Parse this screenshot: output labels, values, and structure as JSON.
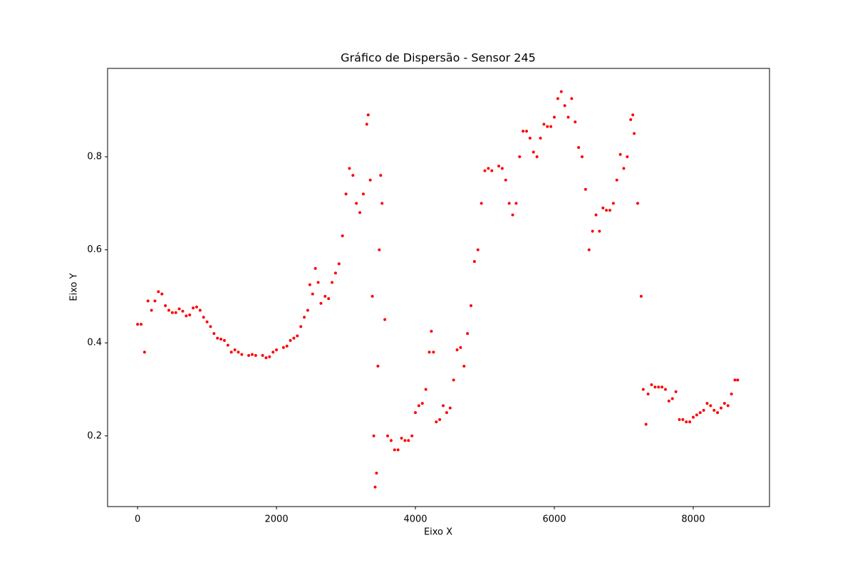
{
  "chart_data": {
    "type": "scatter",
    "title": "Gráfico de Dispersão - Sensor 245",
    "x_label": "Eixo X",
    "y_label": "Eixo Y",
    "color": "#ff0000",
    "x": [
      0,
      50,
      100,
      150,
      200,
      250,
      300,
      350,
      400,
      450,
      500,
      550,
      600,
      650,
      700,
      750,
      800,
      850,
      900,
      950,
      1000,
      1050,
      1100,
      1150,
      1200,
      1250,
      1300,
      1350,
      1400,
      1450,
      1500,
      1600,
      1650,
      1700,
      1800,
      1850,
      1900,
      1950,
      2000,
      2100,
      2150,
      2200,
      2250,
      2300,
      2350,
      2400,
      2450,
      2480,
      2520,
      2560,
      2600,
      2640,
      2700,
      2750,
      2800,
      2850,
      2900,
      2950,
      3000,
      3050,
      3100,
      3150,
      3200,
      3250,
      3300,
      3320,
      3350,
      3380,
      3400,
      3420,
      3440,
      3460,
      3480,
      3500,
      3520,
      3560,
      3600,
      3650,
      3700,
      3750,
      3800,
      3850,
      3900,
      3950,
      4000,
      4050,
      4100,
      4150,
      4200,
      4230,
      4260,
      4300,
      4350,
      4400,
      4450,
      4500,
      4550,
      4600,
      4650,
      4700,
      4750,
      4800,
      4850,
      4900,
      4950,
      5000,
      5050,
      5100,
      5200,
      5250,
      5300,
      5350,
      5400,
      5450,
      5500,
      5550,
      5600,
      5650,
      5700,
      5750,
      5800,
      5850,
      5900,
      5950,
      6000,
      6050,
      6100,
      6150,
      6200,
      6250,
      6300,
      6350,
      6400,
      6450,
      6500,
      6550,
      6600,
      6650,
      6700,
      6750,
      6800,
      6850,
      6900,
      6950,
      7000,
      7050,
      7100,
      7130,
      7150,
      7200,
      7250,
      7280,
      7320,
      7350,
      7400,
      7450,
      7500,
      7550,
      7600,
      7650,
      7700,
      7750,
      7800,
      7850,
      7900,
      7950,
      8000,
      8050,
      8100,
      8150,
      8200,
      8250,
      8300,
      8350,
      8400,
      8450,
      8500,
      8550,
      8600,
      8640
    ],
    "values": [
      0.44,
      0.44,
      0.38,
      0.49,
      0.47,
      0.49,
      0.51,
      0.505,
      0.48,
      0.47,
      0.465,
      0.465,
      0.473,
      0.468,
      0.458,
      0.46,
      0.475,
      0.477,
      0.47,
      0.455,
      0.445,
      0.435,
      0.42,
      0.41,
      0.408,
      0.405,
      0.395,
      0.38,
      0.385,
      0.38,
      0.375,
      0.373,
      0.375,
      0.373,
      0.373,
      0.368,
      0.37,
      0.38,
      0.385,
      0.39,
      0.393,
      0.405,
      0.41,
      0.415,
      0.435,
      0.455,
      0.47,
      0.525,
      0.505,
      0.56,
      0.53,
      0.485,
      0.5,
      0.495,
      0.53,
      0.55,
      0.57,
      0.63,
      0.72,
      0.775,
      0.76,
      0.7,
      0.68,
      0.72,
      0.87,
      0.89,
      0.75,
      0.5,
      0.2,
      0.09,
      0.12,
      0.35,
      0.6,
      0.76,
      0.7,
      0.45,
      0.2,
      0.19,
      0.17,
      0.17,
      0.195,
      0.19,
      0.19,
      0.2,
      0.25,
      0.265,
      0.27,
      0.3,
      0.38,
      0.425,
      0.38,
      0.23,
      0.235,
      0.265,
      0.25,
      0.26,
      0.32,
      0.385,
      0.39,
      0.35,
      0.42,
      0.48,
      0.575,
      0.6,
      0.7,
      0.77,
      0.775,
      0.77,
      0.78,
      0.775,
      0.75,
      0.7,
      0.675,
      0.7,
      0.8,
      0.855,
      0.855,
      0.84,
      0.81,
      0.8,
      0.84,
      0.87,
      0.865,
      0.865,
      0.885,
      0.925,
      0.94,
      0.91,
      0.885,
      0.925,
      0.875,
      0.82,
      0.8,
      0.73,
      0.6,
      0.64,
      0.675,
      0.64,
      0.69,
      0.685,
      0.685,
      0.7,
      0.75,
      0.805,
      0.775,
      0.8,
      0.88,
      0.89,
      0.85,
      0.7,
      0.5,
      0.3,
      0.225,
      0.29,
      0.31,
      0.305,
      0.305,
      0.305,
      0.3,
      0.275,
      0.28,
      0.295,
      0.235,
      0.235,
      0.23,
      0.23,
      0.24,
      0.245,
      0.25,
      0.255,
      0.27,
      0.265,
      0.255,
      0.25,
      0.26,
      0.27,
      0.265,
      0.29,
      0.32,
      0.32
    ],
    "xlim": [
      -432,
      9098
    ],
    "ylim": [
      0.048,
      0.99
    ],
    "xticks": [
      0,
      2000,
      4000,
      6000,
      8000
    ],
    "yticks": [
      0.2,
      0.4,
      0.6,
      0.8
    ]
  }
}
